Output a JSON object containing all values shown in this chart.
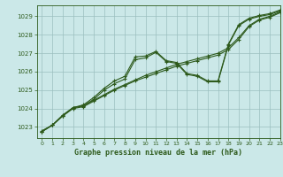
{
  "bg_color": "#cbe8e8",
  "grid_color": "#9bbfbf",
  "line_color": "#2d5a1b",
  "title": "Graphe pression niveau de la mer (hPa)",
  "xlim": [
    -0.5,
    23
  ],
  "ylim": [
    1022.4,
    1029.6
  ],
  "yticks": [
    1023,
    1024,
    1025,
    1026,
    1027,
    1028,
    1029
  ],
  "xticks": [
    0,
    1,
    2,
    3,
    4,
    5,
    6,
    7,
    8,
    9,
    10,
    11,
    12,
    13,
    14,
    15,
    16,
    17,
    18,
    19,
    20,
    21,
    22,
    23
  ],
  "series": [
    {
      "x": [
        0,
        1,
        2,
        3,
        4,
        5,
        6,
        7,
        8,
        9,
        10,
        11,
        12,
        13,
        14,
        15,
        16,
        17,
        18,
        19,
        20,
        21,
        22,
        23
      ],
      "y": [
        1022.8,
        1023.1,
        1023.65,
        1024.05,
        1024.15,
        1024.45,
        1024.75,
        1025.05,
        1025.3,
        1025.55,
        1025.8,
        1026.0,
        1026.2,
        1026.4,
        1026.55,
        1026.7,
        1026.85,
        1027.0,
        1027.3,
        1027.85,
        1028.5,
        1028.85,
        1029.0,
        1029.25
      ]
    },
    {
      "x": [
        0,
        1,
        2,
        3,
        4,
        5,
        6,
        7,
        8,
        9,
        10,
        11,
        12,
        13,
        14,
        15,
        16,
        17,
        18,
        19,
        20,
        21,
        22,
        23
      ],
      "y": [
        1022.75,
        1023.1,
        1023.6,
        1024.0,
        1024.1,
        1024.4,
        1024.7,
        1025.0,
        1025.25,
        1025.5,
        1025.7,
        1025.9,
        1026.1,
        1026.3,
        1026.45,
        1026.6,
        1026.75,
        1026.9,
        1027.2,
        1027.75,
        1028.45,
        1028.8,
        1028.95,
        1029.2
      ]
    },
    {
      "x": [
        0,
        1,
        2,
        3,
        4,
        5,
        6,
        7,
        8,
        9,
        10,
        11,
        12,
        13,
        14,
        15,
        16,
        17,
        18,
        19,
        20,
        21,
        22,
        23
      ],
      "y": [
        1022.75,
        1023.1,
        1023.6,
        1024.05,
        1024.15,
        1024.5,
        1025.0,
        1025.35,
        1025.6,
        1026.65,
        1026.75,
        1027.05,
        1026.55,
        1026.45,
        1025.85,
        1025.75,
        1025.45,
        1025.45,
        1027.45,
        1028.5,
        1028.85,
        1029.0,
        1029.1,
        1029.3
      ]
    },
    {
      "x": [
        0,
        1,
        2,
        3,
        4,
        5,
        6,
        7,
        8,
        9,
        10,
        11,
        12,
        13,
        14,
        15,
        16,
        17,
        18,
        19,
        20,
        21,
        22,
        23
      ],
      "y": [
        1022.75,
        1023.1,
        1023.6,
        1024.05,
        1024.2,
        1024.6,
        1025.1,
        1025.5,
        1025.75,
        1026.8,
        1026.85,
        1027.1,
        1026.6,
        1026.5,
        1025.9,
        1025.8,
        1025.5,
        1025.5,
        1027.5,
        1028.55,
        1028.9,
        1029.05,
        1029.15,
        1029.35
      ]
    }
  ]
}
